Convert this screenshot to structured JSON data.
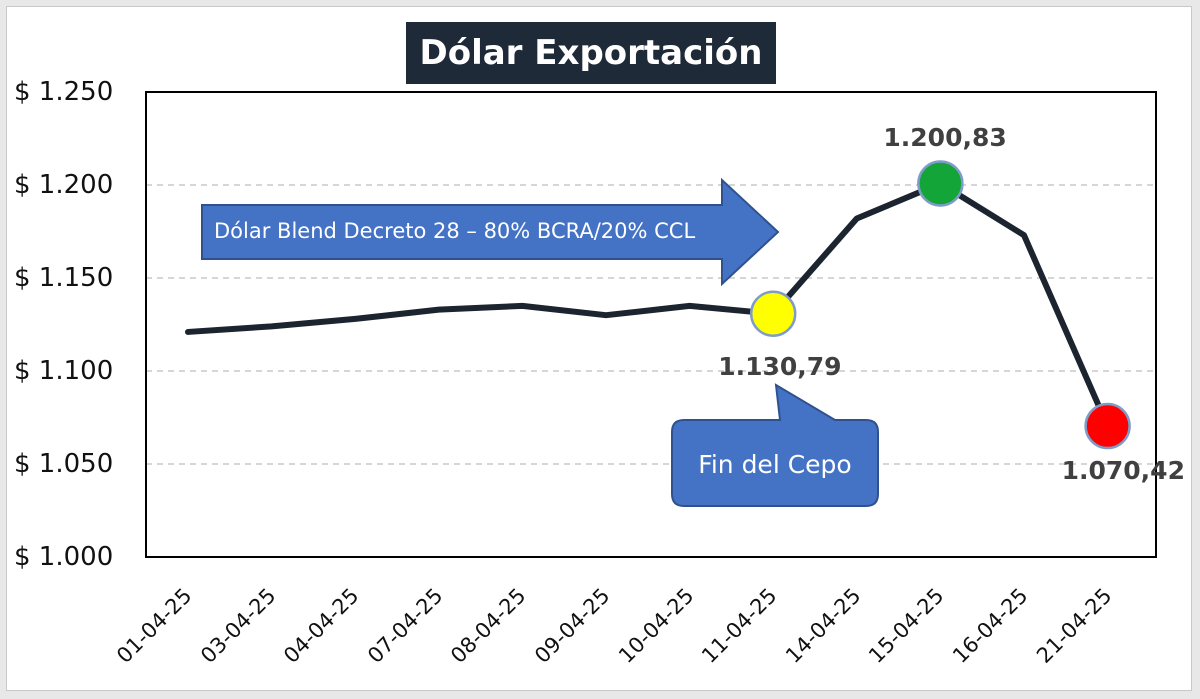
{
  "chart_data": {
    "type": "line",
    "title": "Dólar Exportación",
    "categories": [
      "01-04-25",
      "03-04-25",
      "04-04-25",
      "07-04-25",
      "08-04-25",
      "09-04-25",
      "10-04-25",
      "11-04-25",
      "14-04-25",
      "15-04-25",
      "16-04-25",
      "21-04-25"
    ],
    "series": [
      {
        "values": [
          1121,
          1124,
          1128,
          1133,
          1135,
          1130,
          1135,
          1130.79,
          1182,
          1200.83,
          1173,
          1070.42
        ]
      }
    ],
    "ylim": [
      1000,
      1250
    ],
    "yticks": [
      "$ 1.250",
      "$ 1.200",
      "$ 1.150",
      "$ 1.100",
      "$ 1.050",
      "$ 1.000"
    ],
    "ytick_values": [
      1250,
      1200,
      1150,
      1100,
      1050,
      1000
    ],
    "grid": true,
    "line_color": "#1c2430",
    "highlights": [
      {
        "index": 7,
        "label": "1.130,79",
        "color": "#ffff00"
      },
      {
        "index": 9,
        "label": "1.200,83",
        "color": "#13a538"
      },
      {
        "index": 11,
        "label": "1.070,42",
        "color": "#ff0000"
      }
    ],
    "annotations": {
      "arrow_text": "Dólar Blend Decreto 28 – 80% BCRA/20% CCL",
      "callout_text": "Fin del Cepo",
      "shape_color": "#4472c4"
    }
  }
}
